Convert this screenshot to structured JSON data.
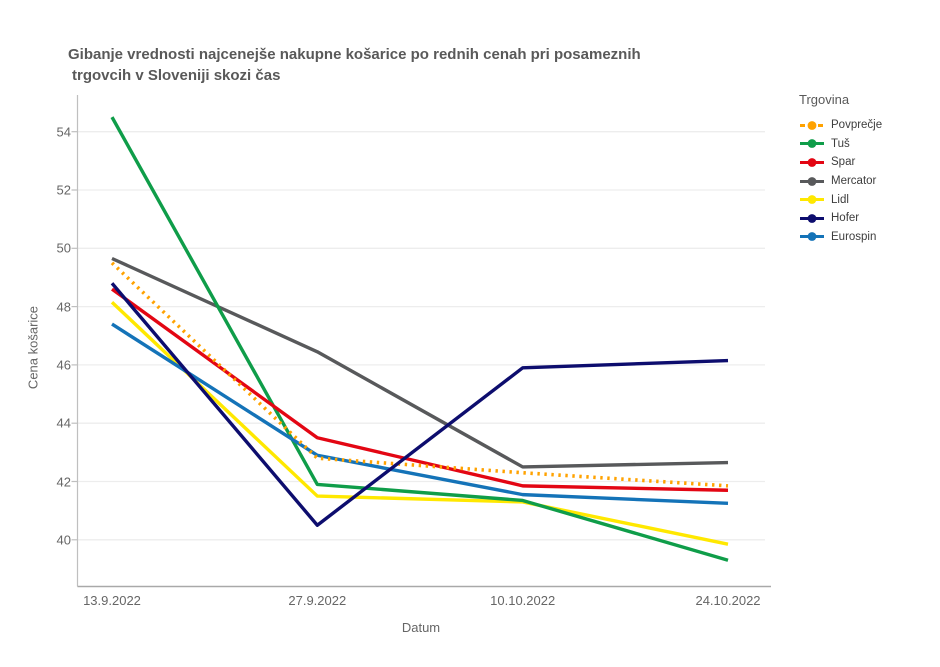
{
  "title": {
    "line1": "Gibanje vrednosti najcenejše nakupne košarice  po rednih cenah pri posameznih",
    "line2": "trgovcih v Sloveniji skozi čas"
  },
  "chart_data": {
    "type": "line",
    "x_labels": [
      "13.9.2022",
      "27.9.2022",
      "10.10.2022",
      "24.10.2022"
    ],
    "xlabel": "Datum",
    "ylabel": "Cena košarice",
    "yticks": [
      40,
      42,
      44,
      46,
      48,
      50,
      52,
      54
    ],
    "ylim": [
      39,
      55.3
    ],
    "grid": true,
    "legend_title": "Trgovina",
    "legend_position": "right",
    "series": [
      {
        "name": "Povprečje",
        "color": "#FFA200",
        "style": "dotted",
        "values": [
          49.5,
          42.8,
          42.3,
          41.85
        ]
      },
      {
        "name": "Tuš",
        "color": "#0F9D49",
        "style": "solid",
        "values": [
          54.5,
          41.9,
          41.35,
          39.3
        ]
      },
      {
        "name": "Spar",
        "color": "#E30613",
        "style": "solid",
        "values": [
          48.6,
          43.5,
          41.85,
          41.7
        ]
      },
      {
        "name": "Mercator",
        "color": "#58595B",
        "style": "solid",
        "values": [
          49.65,
          46.45,
          42.5,
          42.65
        ]
      },
      {
        "name": "Lidl",
        "color": "#FFE800",
        "style": "solid",
        "values": [
          48.15,
          41.5,
          41.3,
          39.85
        ]
      },
      {
        "name": "Hofer",
        "color": "#0D0D6E",
        "style": "solid",
        "values": [
          48.8,
          40.5,
          45.9,
          46.15
        ]
      },
      {
        "name": "Eurospin",
        "color": "#1473B8",
        "style": "solid",
        "values": [
          47.4,
          42.9,
          41.55,
          41.25
        ]
      }
    ],
    "axis_colors": {
      "gridline": "#EDEDED",
      "axis_line": "#BFBFBF",
      "bottom_axis_line": "#A9A9A9"
    }
  }
}
